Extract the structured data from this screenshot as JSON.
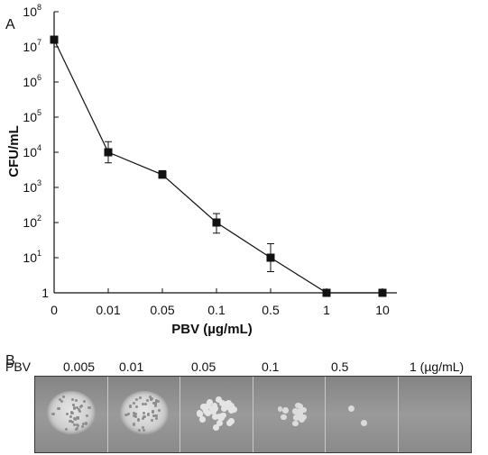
{
  "panel_a_label": "A",
  "panel_b_label": "B",
  "chart_data": {
    "type": "line",
    "categories": [
      "0",
      "0.01",
      "0.05",
      "0.1",
      "0.5",
      "1",
      "10"
    ],
    "xlabel": "PBV (µg/mL)",
    "ylabel": "CFU/mL",
    "yscale": "log",
    "ylim": [
      1,
      100000000
    ],
    "yticks": [
      {
        "base": "1",
        "exp": ""
      },
      {
        "base": "10",
        "exp": "1"
      },
      {
        "base": "10",
        "exp": "2"
      },
      {
        "base": "10",
        "exp": "3"
      },
      {
        "base": "10",
        "exp": "4"
      },
      {
        "base": "10",
        "exp": "5"
      },
      {
        "base": "10",
        "exp": "6"
      },
      {
        "base": "10",
        "exp": "7"
      },
      {
        "base": "10",
        "exp": "8"
      }
    ],
    "series": [
      {
        "values": [
          16000000,
          10000,
          2300,
          100,
          10,
          1,
          1
        ],
        "err_low": [
          null,
          5000,
          1900,
          50,
          4,
          null,
          null
        ],
        "err_high": [
          null,
          20000,
          3000,
          180,
          25,
          null,
          null
        ]
      }
    ]
  },
  "plate": {
    "row_label": "PBV",
    "concentrations": [
      "0.005",
      "0.01",
      "0.05",
      "0.1",
      "0.5",
      "1 (µg/mL)"
    ],
    "colony_appearance": [
      "dense lawn",
      "dense lawn",
      "many colonies",
      "few colonies",
      "two colonies",
      "no growth"
    ]
  }
}
